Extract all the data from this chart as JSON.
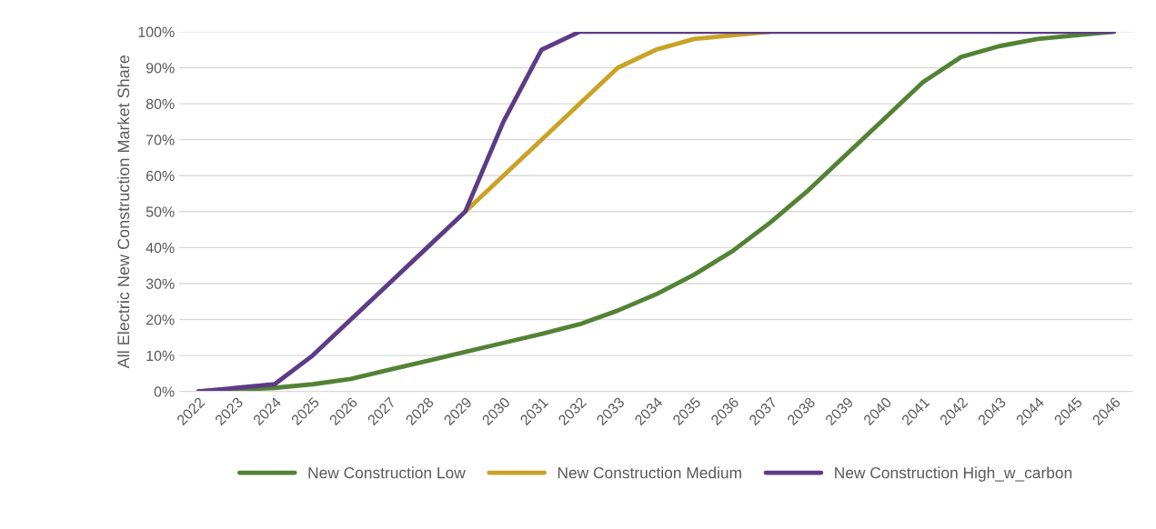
{
  "chart_data": {
    "type": "line",
    "ylabel": "All Electric New Construction Market Share",
    "categories": [
      "2022",
      "2023",
      "2024",
      "2025",
      "2026",
      "2027",
      "2028",
      "2029",
      "2030",
      "2031",
      "2032",
      "2033",
      "2034",
      "2035",
      "2036",
      "2037",
      "2038",
      "2039",
      "2040",
      "2041",
      "2042",
      "2043",
      "2044",
      "2045",
      "2046"
    ],
    "series": [
      {
        "name": "New Construction Low",
        "color": "#548235",
        "values": [
          0,
          0.5,
          1,
          2,
          3.5,
          6,
          8.5,
          11,
          13.5,
          16,
          18.7,
          22.5,
          27,
          32.5,
          39,
          47,
          56,
          66,
          76,
          86,
          93,
          96,
          98,
          99,
          100
        ]
      },
      {
        "name": "New Construction Medium",
        "color": "#c9a227",
        "values": [
          null,
          null,
          null,
          null,
          null,
          null,
          null,
          50,
          60,
          70,
          80,
          90,
          95,
          98,
          99,
          100,
          null,
          null,
          null,
          null,
          null,
          null,
          null,
          null,
          null
        ]
      },
      {
        "name": "New Construction High_w_carbon",
        "color": "#5c3c86",
        "values": [
          0,
          1,
          2,
          10,
          20,
          30,
          40,
          50,
          75,
          95,
          100,
          100,
          100,
          100,
          100,
          100,
          100,
          100,
          100,
          100,
          100,
          100,
          100,
          100,
          100
        ]
      }
    ],
    "ylim": [
      0,
      100
    ],
    "yticks": [
      {
        "value": 0,
        "label": "0%"
      },
      {
        "value": 10,
        "label": "10%"
      },
      {
        "value": 20,
        "label": "20%"
      },
      {
        "value": 30,
        "label": "30%"
      },
      {
        "value": 40,
        "label": "40%"
      },
      {
        "value": 50,
        "label": "50%"
      },
      {
        "value": 60,
        "label": "60%"
      },
      {
        "value": 70,
        "label": "70%"
      },
      {
        "value": 80,
        "label": "80%"
      },
      {
        "value": 90,
        "label": "90%"
      },
      {
        "value": 100,
        "label": "100%"
      }
    ],
    "grid": "y",
    "legend": "bottom",
    "marker": "none",
    "line_style": "solid"
  }
}
